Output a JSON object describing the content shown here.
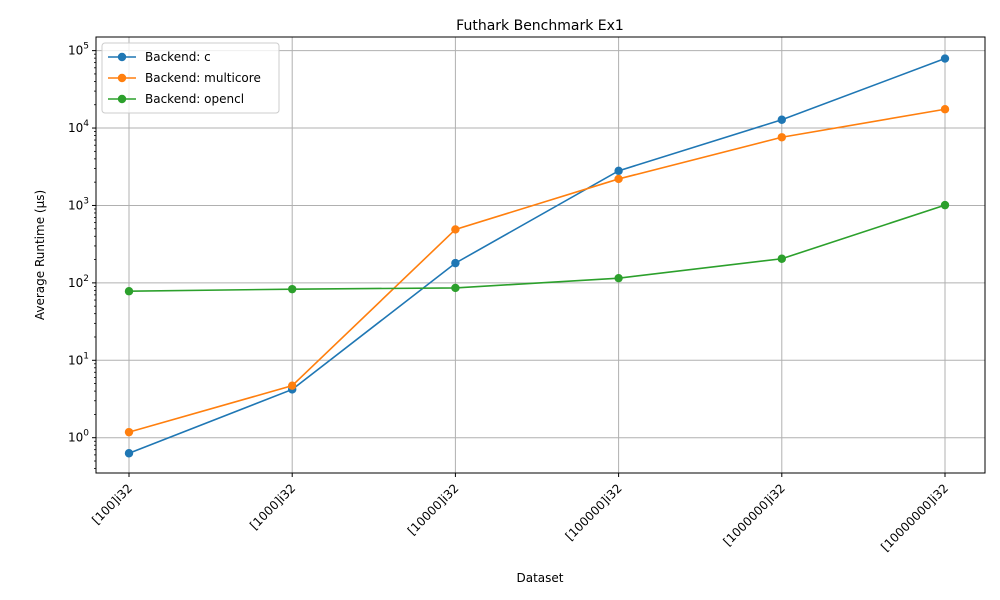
{
  "chart_data": {
    "type": "line",
    "title": "Futhark Benchmark Ex1",
    "xlabel": "Dataset",
    "ylabel": "Average Runtime (µs)",
    "y_scale": "log",
    "ylim": [
      0.35,
      150000
    ],
    "grid": true,
    "legend_position": "top-left",
    "categories": [
      "[100]i32",
      "[1000]i32",
      "[10000]i32",
      "[100000]i32",
      "[1000000]i32",
      "[10000000]i32"
    ],
    "y_ticks": [
      {
        "value": 1,
        "label": "10",
        "exp": "0"
      },
      {
        "value": 10,
        "label": "10",
        "exp": "1"
      },
      {
        "value": 100,
        "label": "10",
        "exp": "2"
      },
      {
        "value": 1000,
        "label": "10",
        "exp": "3"
      },
      {
        "value": 10000,
        "label": "10",
        "exp": "4"
      },
      {
        "value": 100000,
        "label": "10",
        "exp": "5"
      }
    ],
    "series": [
      {
        "name": "Backend: c",
        "color": "#1f77b4",
        "values": [
          0.63,
          4.2,
          180,
          2800,
          12800,
          79000
        ]
      },
      {
        "name": "Backend: multicore",
        "color": "#ff7f0e",
        "values": [
          1.18,
          4.7,
          490,
          2200,
          7600,
          17500
        ]
      },
      {
        "name": "Backend: opencl",
        "color": "#2ca02c",
        "values": [
          78,
          83,
          86,
          115,
          205,
          1010
        ]
      }
    ]
  }
}
